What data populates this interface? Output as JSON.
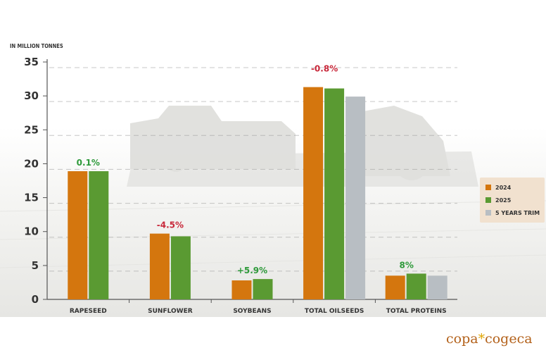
{
  "unit_label": "IN MILLION TONNES",
  "brand": {
    "left": "copa",
    "star": "*",
    "right": "cogeca"
  },
  "colors": {
    "2024": "#d4760e",
    "2025": "#5a9a32",
    "5 YEARS TRIM": "#b8bec3",
    "pos_label": "#2e9a3a",
    "neg_label": "#c8283a"
  },
  "chart_data": {
    "type": "bar",
    "categories": [
      "RAPESEED",
      "SUNFLOWER",
      "SOYBEANS",
      "TOTAL OILSEEDS",
      "TOTAL PROTEINS"
    ],
    "series": [
      {
        "name": "2024",
        "values": [
          18.9,
          9.7,
          2.8,
          31.3,
          3.5
        ]
      },
      {
        "name": "2025",
        "values": [
          18.9,
          9.3,
          3.0,
          31.1,
          3.8
        ]
      },
      {
        "name": "5 YEARS TRIM",
        "values": [
          null,
          null,
          null,
          29.9,
          3.5
        ]
      }
    ],
    "change_labels": [
      "0.1%",
      "-4.5%",
      "+5.9%",
      "-0.8%",
      "8%"
    ],
    "ylim": [
      0,
      35
    ],
    "yticks": [
      0,
      5,
      10,
      15,
      20,
      25,
      30,
      35
    ],
    "ylabel": "IN MILLION TONNES",
    "legend_position": "right",
    "grid": "dashed horizontal"
  }
}
